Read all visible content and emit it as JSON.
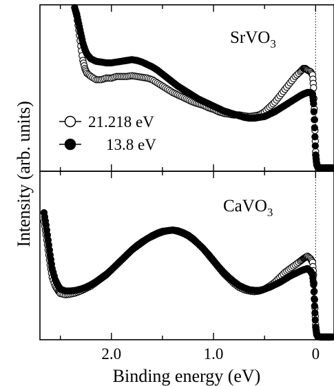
{
  "chart_data": [
    {
      "type": "scatter",
      "panel_label": "SrVO",
      "panel_label_sub": "3",
      "xlim": [
        2.7,
        -0.18
      ],
      "x_reversed": true,
      "x_ticks": [
        2.0,
        1.0,
        0
      ],
      "x_tick_labels": [
        "2.0",
        "1.0",
        "0"
      ],
      "fermi_level_line": 0,
      "series": [
        {
          "name": "21.218 eV",
          "marker": "open-circle",
          "x": [
            2.36,
            2.34,
            2.32,
            2.3,
            2.28,
            2.26,
            2.24,
            2.2,
            2.15,
            2.1,
            2.05,
            2.0,
            1.95,
            1.9,
            1.85,
            1.8,
            1.75,
            1.7,
            1.65,
            1.6,
            1.55,
            1.5,
            1.45,
            1.4,
            1.35,
            1.3,
            1.25,
            1.2,
            1.15,
            1.1,
            1.05,
            1.0,
            0.95,
            0.9,
            0.85,
            0.8,
            0.75,
            0.7,
            0.65,
            0.6,
            0.55,
            0.5,
            0.45,
            0.4,
            0.35,
            0.3,
            0.25,
            0.2,
            0.15,
            0.12,
            0.1,
            0.08,
            0.05,
            0.03,
            0.02,
            0.01,
            0.0,
            -0.01,
            -0.02,
            -0.04,
            -0.06,
            -0.08,
            -0.1,
            -0.12,
            -0.14,
            -0.16
          ],
          "y": [
            1.0,
            0.95,
            0.86,
            0.76,
            0.67,
            0.62,
            0.59,
            0.57,
            0.55,
            0.55,
            0.56,
            0.56,
            0.57,
            0.57,
            0.57,
            0.575,
            0.57,
            0.565,
            0.56,
            0.55,
            0.53,
            0.51,
            0.49,
            0.47,
            0.455,
            0.44,
            0.425,
            0.41,
            0.4,
            0.39,
            0.375,
            0.365,
            0.35,
            0.34,
            0.335,
            0.33,
            0.33,
            0.325,
            0.32,
            0.325,
            0.33,
            0.35,
            0.38,
            0.41,
            0.45,
            0.49,
            0.53,
            0.57,
            0.6,
            0.62,
            0.62,
            0.61,
            0.6,
            0.58,
            0.5,
            0.3,
            0.1,
            0.03,
            0.005,
            0.0,
            0.0,
            0.0,
            0.0,
            0.0,
            0.0,
            0.0
          ]
        },
        {
          "name": "13.8 eV",
          "marker": "filled-circle",
          "x": [
            2.36,
            2.34,
            2.32,
            2.3,
            2.28,
            2.26,
            2.24,
            2.2,
            2.15,
            2.1,
            2.05,
            2.0,
            1.95,
            1.9,
            1.85,
            1.8,
            1.75,
            1.7,
            1.65,
            1.6,
            1.55,
            1.5,
            1.45,
            1.4,
            1.35,
            1.3,
            1.25,
            1.2,
            1.15,
            1.1,
            1.05,
            1.0,
            0.95,
            0.9,
            0.85,
            0.8,
            0.75,
            0.7,
            0.65,
            0.6,
            0.55,
            0.5,
            0.45,
            0.4,
            0.35,
            0.3,
            0.25,
            0.2,
            0.15,
            0.12,
            0.1,
            0.08,
            0.05,
            0.03,
            0.02,
            0.01,
            0.0,
            -0.01,
            -0.02,
            -0.04,
            -0.06,
            -0.08,
            -0.1,
            -0.12,
            -0.14,
            -0.16
          ],
          "y": [
            1.0,
            0.96,
            0.9,
            0.84,
            0.78,
            0.74,
            0.71,
            0.68,
            0.665,
            0.66,
            0.655,
            0.655,
            0.66,
            0.665,
            0.67,
            0.675,
            0.67,
            0.66,
            0.645,
            0.63,
            0.61,
            0.585,
            0.56,
            0.535,
            0.51,
            0.49,
            0.47,
            0.45,
            0.43,
            0.415,
            0.4,
            0.385,
            0.37,
            0.355,
            0.345,
            0.335,
            0.325,
            0.315,
            0.31,
            0.31,
            0.315,
            0.32,
            0.335,
            0.35,
            0.37,
            0.39,
            0.41,
            0.43,
            0.45,
            0.46,
            0.465,
            0.47,
            0.47,
            0.46,
            0.4,
            0.25,
            0.08,
            0.02,
            0.005,
            0.0,
            0.0,
            0.0,
            0.0,
            0.0,
            0.0,
            0.0
          ]
        }
      ]
    },
    {
      "type": "scatter",
      "panel_label": "CaVO",
      "panel_label_sub": "3",
      "xlim": [
        2.7,
        -0.18
      ],
      "x_reversed": true,
      "x_ticks": [
        2.0,
        1.0,
        0
      ],
      "x_tick_labels": [
        "2.0",
        "1.0",
        "0"
      ],
      "fermi_level_line": 0,
      "series": [
        {
          "name": "21.218 eV",
          "marker": "open-circle",
          "x": [
            2.66,
            2.64,
            2.62,
            2.6,
            2.58,
            2.55,
            2.52,
            2.5,
            2.45,
            2.4,
            2.35,
            2.3,
            2.25,
            2.2,
            2.15,
            2.1,
            2.05,
            2.0,
            1.95,
            1.9,
            1.85,
            1.8,
            1.75,
            1.7,
            1.65,
            1.6,
            1.55,
            1.5,
            1.45,
            1.4,
            1.35,
            1.3,
            1.25,
            1.2,
            1.15,
            1.1,
            1.05,
            1.0,
            0.95,
            0.9,
            0.85,
            0.8,
            0.75,
            0.7,
            0.65,
            0.6,
            0.55,
            0.5,
            0.45,
            0.4,
            0.35,
            0.3,
            0.25,
            0.2,
            0.15,
            0.12,
            0.1,
            0.08,
            0.05,
            0.03,
            0.02,
            0.01,
            0.0,
            -0.01,
            -0.02,
            -0.04,
            -0.06,
            -0.08,
            -0.1,
            -0.12,
            -0.14,
            -0.16
          ],
          "y": [
            0.93,
            0.82,
            0.7,
            0.58,
            0.48,
            0.41,
            0.37,
            0.35,
            0.34,
            0.345,
            0.355,
            0.37,
            0.39,
            0.41,
            0.44,
            0.47,
            0.5,
            0.54,
            0.58,
            0.62,
            0.66,
            0.7,
            0.73,
            0.76,
            0.79,
            0.81,
            0.83,
            0.845,
            0.855,
            0.86,
            0.855,
            0.84,
            0.82,
            0.79,
            0.75,
            0.71,
            0.66,
            0.61,
            0.56,
            0.51,
            0.47,
            0.43,
            0.4,
            0.38,
            0.37,
            0.365,
            0.37,
            0.385,
            0.41,
            0.44,
            0.48,
            0.52,
            0.55,
            0.58,
            0.61,
            0.63,
            0.64,
            0.65,
            0.63,
            0.6,
            0.5,
            0.3,
            0.1,
            0.03,
            0.005,
            0.0,
            0.0,
            0.0,
            0.0,
            0.0,
            0.0,
            0.0
          ]
        },
        {
          "name": "13.8 eV",
          "marker": "filled-circle",
          "x": [
            2.66,
            2.64,
            2.62,
            2.6,
            2.58,
            2.55,
            2.52,
            2.5,
            2.45,
            2.4,
            2.35,
            2.3,
            2.25,
            2.2,
            2.15,
            2.1,
            2.05,
            2.0,
            1.95,
            1.9,
            1.85,
            1.8,
            1.75,
            1.7,
            1.65,
            1.6,
            1.55,
            1.5,
            1.45,
            1.4,
            1.35,
            1.3,
            1.25,
            1.2,
            1.15,
            1.1,
            1.05,
            1.0,
            0.95,
            0.9,
            0.85,
            0.8,
            0.75,
            0.7,
            0.65,
            0.6,
            0.55,
            0.5,
            0.45,
            0.4,
            0.35,
            0.3,
            0.25,
            0.2,
            0.15,
            0.12,
            0.1,
            0.08,
            0.05,
            0.03,
            0.02,
            0.01,
            0.0,
            -0.01,
            -0.02,
            -0.04,
            -0.06,
            -0.08,
            -0.1,
            -0.12,
            -0.14,
            -0.16
          ],
          "y": [
            1.0,
            0.9,
            0.78,
            0.66,
            0.55,
            0.46,
            0.41,
            0.385,
            0.37,
            0.37,
            0.375,
            0.385,
            0.4,
            0.42,
            0.445,
            0.475,
            0.505,
            0.54,
            0.58,
            0.62,
            0.66,
            0.7,
            0.735,
            0.765,
            0.79,
            0.815,
            0.835,
            0.85,
            0.855,
            0.86,
            0.85,
            0.835,
            0.815,
            0.785,
            0.75,
            0.71,
            0.665,
            0.615,
            0.565,
            0.52,
            0.48,
            0.445,
            0.415,
            0.395,
            0.38,
            0.375,
            0.375,
            0.385,
            0.4,
            0.42,
            0.44,
            0.465,
            0.49,
            0.51,
            0.53,
            0.54,
            0.545,
            0.55,
            0.53,
            0.5,
            0.42,
            0.25,
            0.08,
            0.02,
            0.005,
            0.0,
            0.0,
            0.0,
            0.0,
            0.0,
            0.0,
            0.0
          ]
        }
      ]
    }
  ],
  "legend": [
    {
      "label": "21.218 eV",
      "marker": "open-circle"
    },
    {
      "label": "13.8 eV",
      "marker": "filled-circle"
    }
  ],
  "xlabel": "Binding energy (eV)",
  "ylabel": "Intensity (arb. units)"
}
